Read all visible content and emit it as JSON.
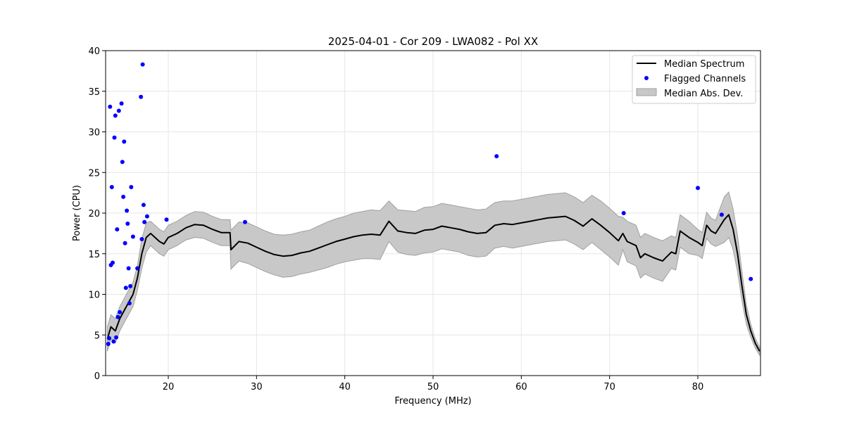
{
  "chart_data": {
    "type": "line",
    "title": "2025-04-01 - Cor 209 - LWA082 - Pol XX",
    "xlabel": "Frequency (MHz)",
    "ylabel": "Power (CPU)",
    "xlim": [
      12.9,
      87.1
    ],
    "ylim": [
      0,
      40
    ],
    "xticks": [
      20,
      30,
      40,
      50,
      60,
      70,
      80
    ],
    "yticks": [
      0,
      5,
      10,
      15,
      20,
      25,
      30,
      35,
      40
    ],
    "grid": true,
    "legend_position": "top-right",
    "colors": {
      "median": "#000000",
      "flagged": "#0000ff",
      "mad_fill": "#c8c8c8",
      "mad_edge": "#a0a0a0"
    },
    "legend": [
      {
        "label": "Median Spectrum",
        "kind": "line"
      },
      {
        "label": "Flagged Channels",
        "kind": "marker"
      },
      {
        "label": "Median Abs. Dev.",
        "kind": "patch"
      }
    ],
    "series": [
      {
        "name": "Median Spectrum",
        "x": [
          13.1,
          13.5,
          14.0,
          14.5,
          15.0,
          15.5,
          16.0,
          16.5,
          17.0,
          17.5,
          18.0,
          18.5,
          19.0,
          19.5,
          20.0,
          21.0,
          22.0,
          23.0,
          24.0,
          25.0,
          26.0,
          27.0,
          27.1,
          28.0,
          29.0,
          30.0,
          31.0,
          32.0,
          33.0,
          34.0,
          35.0,
          36.0,
          37.0,
          38.0,
          39.0,
          40.0,
          41.0,
          42.0,
          43.0,
          44.0,
          45.0,
          46.0,
          47.0,
          48.0,
          49.0,
          50.0,
          51.0,
          52.0,
          53.0,
          54.0,
          55.0,
          56.0,
          57.0,
          58.0,
          59.0,
          60.0,
          61.0,
          62.0,
          63.0,
          64.0,
          65.0,
          66.0,
          67.0,
          68.0,
          69.0,
          70.0,
          71.0,
          71.5,
          72.0,
          73.0,
          73.5,
          74.0,
          75.0,
          76.0,
          77.0,
          77.5,
          78.0,
          79.0,
          80.0,
          80.5,
          81.0,
          81.5,
          82.0,
          83.0,
          83.5,
          84.0,
          84.5,
          85.0,
          85.5,
          86.0,
          86.5,
          87.0
        ],
        "y": [
          4.5,
          6.0,
          5.5,
          7.0,
          8.0,
          9.0,
          10.0,
          12.0,
          15.0,
          17.0,
          17.5,
          17.0,
          16.5,
          16.2,
          17.0,
          17.5,
          18.2,
          18.6,
          18.5,
          18.0,
          17.6,
          17.6,
          15.5,
          16.5,
          16.3,
          15.8,
          15.3,
          14.9,
          14.7,
          14.8,
          15.1,
          15.3,
          15.7,
          16.1,
          16.5,
          16.8,
          17.1,
          17.3,
          17.4,
          17.3,
          19.0,
          17.8,
          17.6,
          17.5,
          17.9,
          18.0,
          18.4,
          18.2,
          18.0,
          17.7,
          17.5,
          17.6,
          18.5,
          18.7,
          18.6,
          18.8,
          19.0,
          19.2,
          19.4,
          19.5,
          19.6,
          19.1,
          18.4,
          19.3,
          18.5,
          17.6,
          16.6,
          17.5,
          16.5,
          16.0,
          14.5,
          15.0,
          14.5,
          14.1,
          15.2,
          15.0,
          17.8,
          17.0,
          16.4,
          16.0,
          18.5,
          17.8,
          17.5,
          19.2,
          19.8,
          18.0,
          15.0,
          11.0,
          7.5,
          5.5,
          4.0,
          3.0
        ],
        "spread": [
          1.5,
          1.5,
          1.5,
          1.5,
          1.5,
          1.5,
          1.5,
          1.5,
          1.8,
          1.8,
          1.5,
          1.5,
          1.5,
          1.5,
          1.5,
          1.5,
          1.5,
          1.6,
          1.6,
          1.6,
          1.6,
          1.6,
          2.4,
          2.4,
          2.5,
          2.5,
          2.5,
          2.5,
          2.6,
          2.6,
          2.6,
          2.6,
          2.7,
          2.8,
          2.8,
          2.8,
          2.9,
          2.9,
          3.0,
          3.0,
          2.5,
          2.6,
          2.7,
          2.7,
          2.8,
          2.8,
          2.8,
          2.8,
          2.8,
          2.9,
          2.9,
          2.9,
          2.8,
          2.8,
          2.9,
          2.9,
          2.9,
          2.9,
          2.9,
          2.9,
          2.9,
          2.9,
          2.9,
          2.9,
          3.0,
          3.0,
          3.0,
          2.0,
          2.5,
          2.5,
          2.5,
          2.5,
          2.5,
          2.5,
          2.0,
          2.0,
          2.0,
          2.0,
          1.6,
          1.6,
          1.6,
          1.6,
          1.6,
          2.8,
          2.8,
          2.5,
          2.2,
          1.8,
          1.2,
          0.8,
          0.6,
          0.5
        ]
      },
      {
        "name": "Flagged Channels",
        "x": [
          13.2,
          13.3,
          13.4,
          13.5,
          13.6,
          13.7,
          13.8,
          13.9,
          14.0,
          14.1,
          14.2,
          14.3,
          14.4,
          14.5,
          14.7,
          14.8,
          14.9,
          15.0,
          15.1,
          15.2,
          15.3,
          15.4,
          15.5,
          15.6,
          15.7,
          15.8,
          16.0,
          16.5,
          16.9,
          17.0,
          17.1,
          17.2,
          17.3,
          17.6,
          19.8,
          28.7,
          57.2,
          71.6,
          80.0,
          82.7,
          86.0
        ],
        "y": [
          3.9,
          4.6,
          33.1,
          13.6,
          23.2,
          13.9,
          4.2,
          29.3,
          32.0,
          4.7,
          18.0,
          7.2,
          32.6,
          7.8,
          33.5,
          26.3,
          22.0,
          28.8,
          16.3,
          10.8,
          20.3,
          18.7,
          13.2,
          8.9,
          11.0,
          23.2,
          17.1,
          13.2,
          34.3,
          16.8,
          38.3,
          21.0,
          18.9,
          19.6,
          19.2,
          18.9,
          27.0,
          20.0,
          23.1,
          19.8,
          11.9
        ]
      }
    ]
  }
}
